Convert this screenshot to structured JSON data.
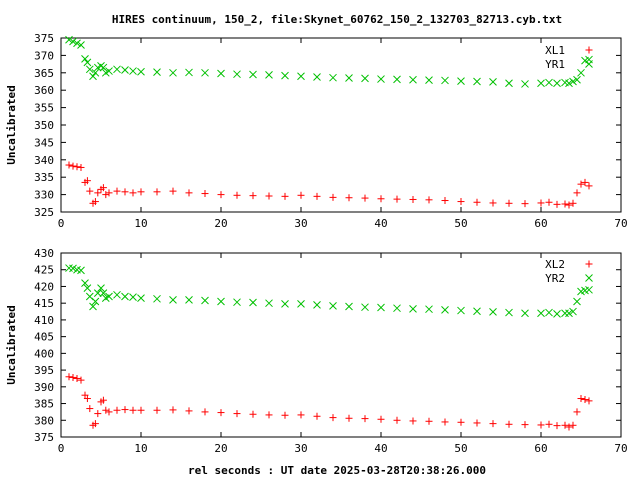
{
  "title": "HIRES continuum, 150_2, file:Skynet_60762_150_2_132703_82713.cyb.txt",
  "xlabel": "rel seconds : UT date 2025-03-28T20:38:26.000",
  "chart_data": [
    {
      "type": "scatter",
      "ylabel": "Uncalibrated",
      "xlim": [
        0,
        70
      ],
      "ylim": [
        325,
        375
      ],
      "xticks": [
        "0",
        "10",
        "20",
        "30",
        "40",
        "50",
        "60",
        "70"
      ],
      "yticks": [
        "325",
        "330",
        "335",
        "340",
        "345",
        "350",
        "355",
        "360",
        "365",
        "370",
        "375"
      ],
      "grid": false,
      "legend_position": "top-right",
      "series": [
        {
          "name": "XL1",
          "marker": "+",
          "color": "#ff0000",
          "x": [
            1.0,
            1.5,
            2.0,
            2.5,
            3.0,
            3.3,
            3.6,
            4.0,
            4.3,
            4.6,
            5.0,
            5.3,
            5.6,
            6.0,
            7,
            8,
            9,
            10,
            12,
            14,
            16,
            18,
            20,
            22,
            24,
            26,
            28,
            30,
            32,
            34,
            36,
            38,
            40,
            42,
            44,
            46,
            48,
            50,
            52,
            54,
            56,
            58,
            60,
            61,
            62,
            63,
            63.5,
            64.0,
            64.5,
            65.0,
            65.5,
            66.0
          ],
          "y": [
            338.5,
            338.2,
            338.0,
            337.8,
            333.5,
            334.0,
            331.0,
            327.5,
            328.0,
            330.5,
            331.5,
            332.0,
            330.0,
            330.5,
            331.0,
            330.8,
            330.5,
            330.8,
            330.8,
            331.0,
            330.5,
            330.3,
            330.0,
            329.8,
            329.7,
            329.6,
            329.5,
            329.8,
            329.5,
            329.2,
            329.1,
            329.0,
            328.8,
            328.7,
            328.6,
            328.5,
            328.3,
            328.0,
            327.8,
            327.6,
            327.5,
            327.4,
            327.6,
            327.8,
            327.2,
            327.3,
            327.0,
            327.5,
            330.5,
            333.0,
            333.5,
            332.5
          ]
        },
        {
          "name": "YR1",
          "marker": "x",
          "color": "#00c000",
          "x": [
            1.0,
            1.5,
            2.0,
            2.5,
            3.0,
            3.3,
            3.6,
            4.0,
            4.3,
            4.6,
            5.0,
            5.3,
            5.6,
            6.0,
            7,
            8,
            9,
            10,
            12,
            14,
            16,
            18,
            20,
            22,
            24,
            26,
            28,
            30,
            32,
            34,
            36,
            38,
            40,
            42,
            44,
            46,
            48,
            50,
            52,
            54,
            56,
            58,
            60,
            61,
            62,
            63,
            63.5,
            64.0,
            64.5,
            65.0,
            65.5,
            66.0
          ],
          "y": [
            374.5,
            374.0,
            373.5,
            373.0,
            369.0,
            368.0,
            366.0,
            364.0,
            365.0,
            366.5,
            367.0,
            366.5,
            365.0,
            365.5,
            366.0,
            365.8,
            365.5,
            365.3,
            365.2,
            365.0,
            365.1,
            365.0,
            364.8,
            364.6,
            364.5,
            364.4,
            364.2,
            364.0,
            363.8,
            363.6,
            363.5,
            363.4,
            363.2,
            363.1,
            363.0,
            362.9,
            362.8,
            362.6,
            362.5,
            362.4,
            362.0,
            361.8,
            362.0,
            362.2,
            362.0,
            362.2,
            362.0,
            362.5,
            363.0,
            365.0,
            368.5,
            368.8
          ]
        }
      ]
    },
    {
      "type": "scatter",
      "ylabel": "Uncalibrated",
      "xlim": [
        0,
        70
      ],
      "ylim": [
        375,
        430
      ],
      "xticks": [
        "0",
        "10",
        "20",
        "30",
        "40",
        "50",
        "60",
        "70"
      ],
      "yticks": [
        "375",
        "380",
        "385",
        "390",
        "395",
        "400",
        "405",
        "410",
        "415",
        "420",
        "425",
        "430"
      ],
      "grid": false,
      "legend_position": "top-right",
      "series": [
        {
          "name": "XL2",
          "marker": "+",
          "color": "#ff0000",
          "x": [
            1.0,
            1.5,
            2.0,
            2.5,
            3.0,
            3.3,
            3.6,
            4.0,
            4.3,
            4.6,
            5.0,
            5.3,
            5.6,
            6.0,
            7,
            8,
            9,
            10,
            12,
            14,
            16,
            18,
            20,
            22,
            24,
            26,
            28,
            30,
            32,
            34,
            36,
            38,
            40,
            42,
            44,
            46,
            48,
            50,
            52,
            54,
            56,
            58,
            60,
            61,
            62,
            63,
            63.5,
            64.0,
            64.5,
            65.0,
            65.5,
            66.0
          ],
          "y": [
            393.0,
            392.8,
            392.5,
            392.0,
            387.5,
            386.5,
            383.5,
            378.5,
            379.0,
            382.0,
            385.5,
            386.0,
            383.0,
            382.5,
            383.0,
            383.2,
            383.0,
            383.0,
            383.0,
            383.1,
            382.8,
            382.5,
            382.3,
            382.0,
            381.8,
            381.6,
            381.5,
            381.6,
            381.2,
            380.8,
            380.6,
            380.5,
            380.3,
            380.0,
            379.8,
            379.7,
            379.5,
            379.4,
            379.2,
            379.0,
            378.8,
            378.7,
            378.6,
            378.8,
            378.4,
            378.5,
            378.0,
            378.5,
            382.5,
            386.5,
            386.2,
            385.8
          ]
        },
        {
          "name": "YR2",
          "marker": "x",
          "color": "#00c000",
          "x": [
            1.0,
            1.5,
            2.0,
            2.5,
            3.0,
            3.3,
            3.6,
            4.0,
            4.3,
            4.6,
            5.0,
            5.3,
            5.6,
            6.0,
            7,
            8,
            9,
            10,
            12,
            14,
            16,
            18,
            20,
            22,
            24,
            26,
            28,
            30,
            32,
            34,
            36,
            38,
            40,
            42,
            44,
            46,
            48,
            50,
            52,
            54,
            56,
            58,
            60,
            61,
            62,
            63,
            63.5,
            64.0,
            64.5,
            65.0,
            65.5,
            66.0
          ],
          "y": [
            425.5,
            425.4,
            425.0,
            424.8,
            421.0,
            419.5,
            417.0,
            414.0,
            415.5,
            418.0,
            419.5,
            418.0,
            416.5,
            417.0,
            417.5,
            417.0,
            416.8,
            416.5,
            416.3,
            416.0,
            416.0,
            415.8,
            415.5,
            415.3,
            415.2,
            415.0,
            414.8,
            414.8,
            414.5,
            414.2,
            414.0,
            413.8,
            413.7,
            413.5,
            413.3,
            413.2,
            413.0,
            412.8,
            412.6,
            412.4,
            412.2,
            412.0,
            412.0,
            412.2,
            411.8,
            412.0,
            412.0,
            412.5,
            415.5,
            418.5,
            418.8,
            419.0
          ]
        }
      ]
    }
  ]
}
